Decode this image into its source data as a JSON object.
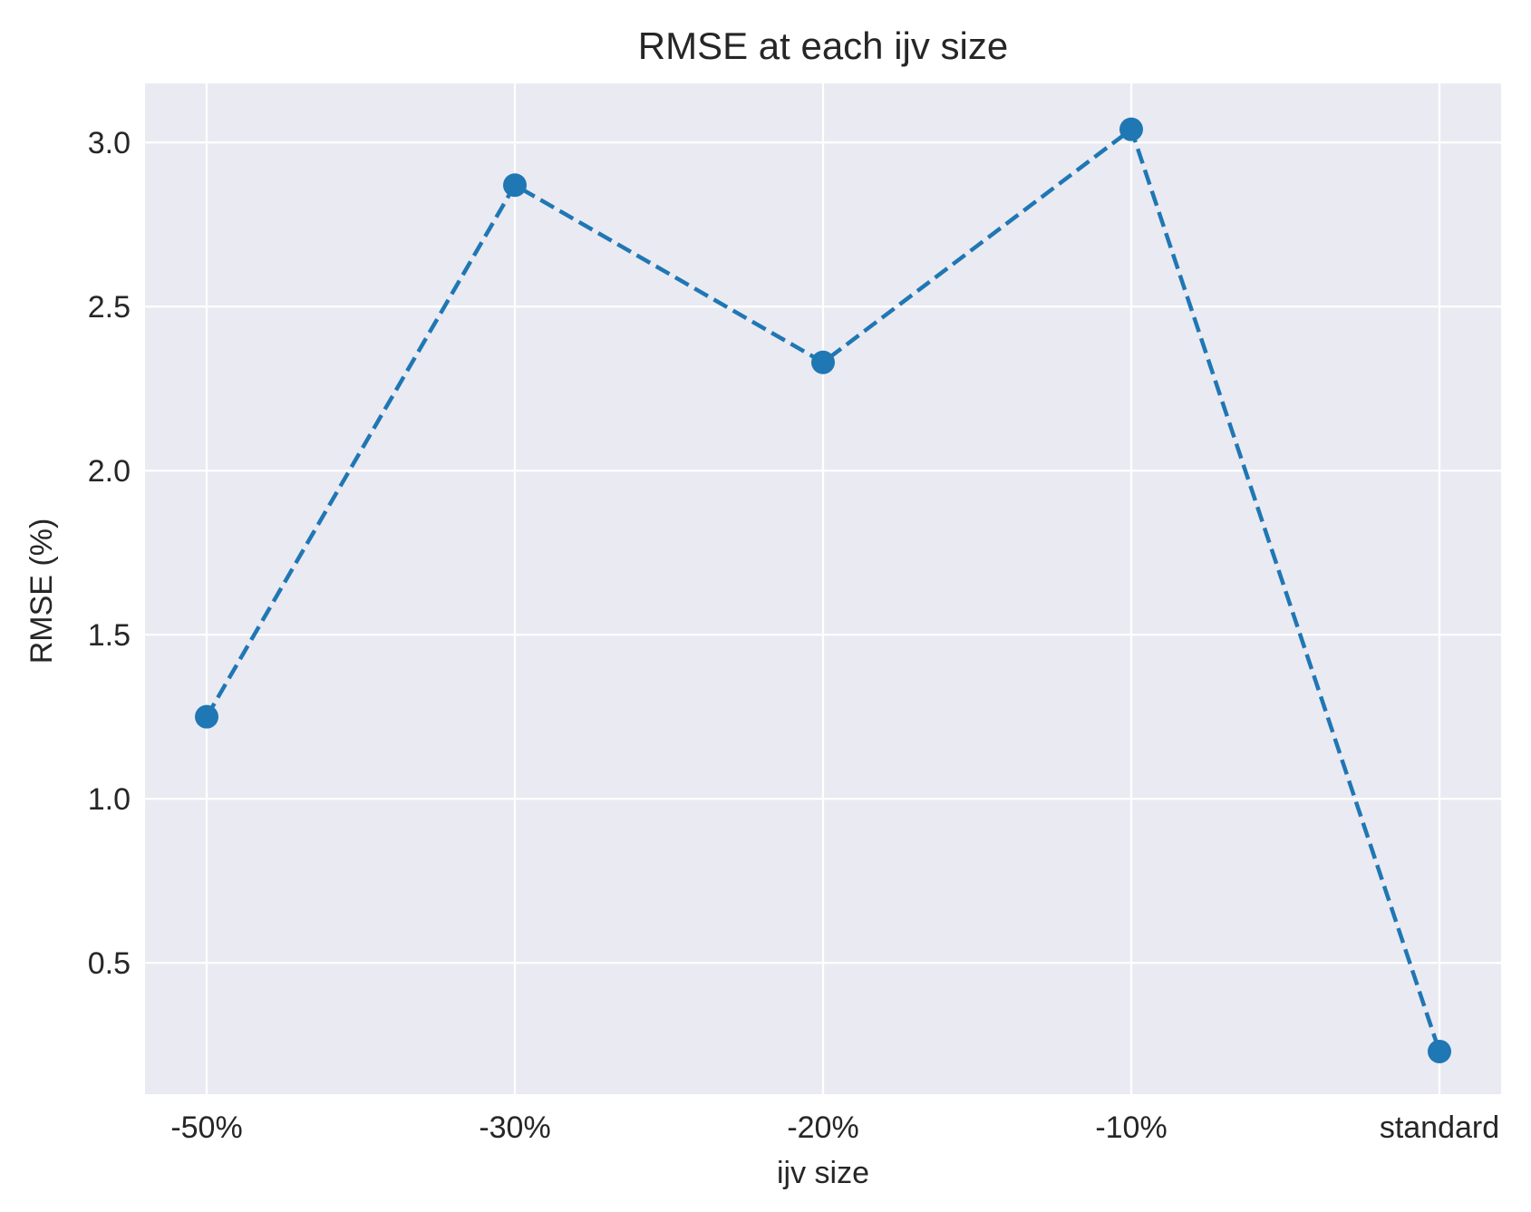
{
  "chart_data": {
    "type": "line",
    "title": "RMSE at each ijv size",
    "xlabel": "ijv size",
    "ylabel": "RMSE (%)",
    "categories": [
      "-50%",
      "-30%",
      "-20%",
      "-10%",
      "standard"
    ],
    "series": [
      {
        "name": "RMSE",
        "values": [
          1.25,
          2.87,
          2.33,
          3.04,
          0.23
        ],
        "line_style": "dashed",
        "marker": "circle"
      }
    ],
    "ylim": [
      0.1,
      3.18
    ],
    "yticks": [
      0.5,
      1.0,
      1.5,
      2.0,
      2.5,
      3.0
    ],
    "ytick_labels": [
      "0.5",
      "1.0",
      "1.5",
      "2.0",
      "2.5",
      "3.0"
    ],
    "grid": true,
    "colors": {
      "line": "#1f77b4",
      "plot_background": "#eaeaf2",
      "grid": "#ffffff"
    }
  }
}
